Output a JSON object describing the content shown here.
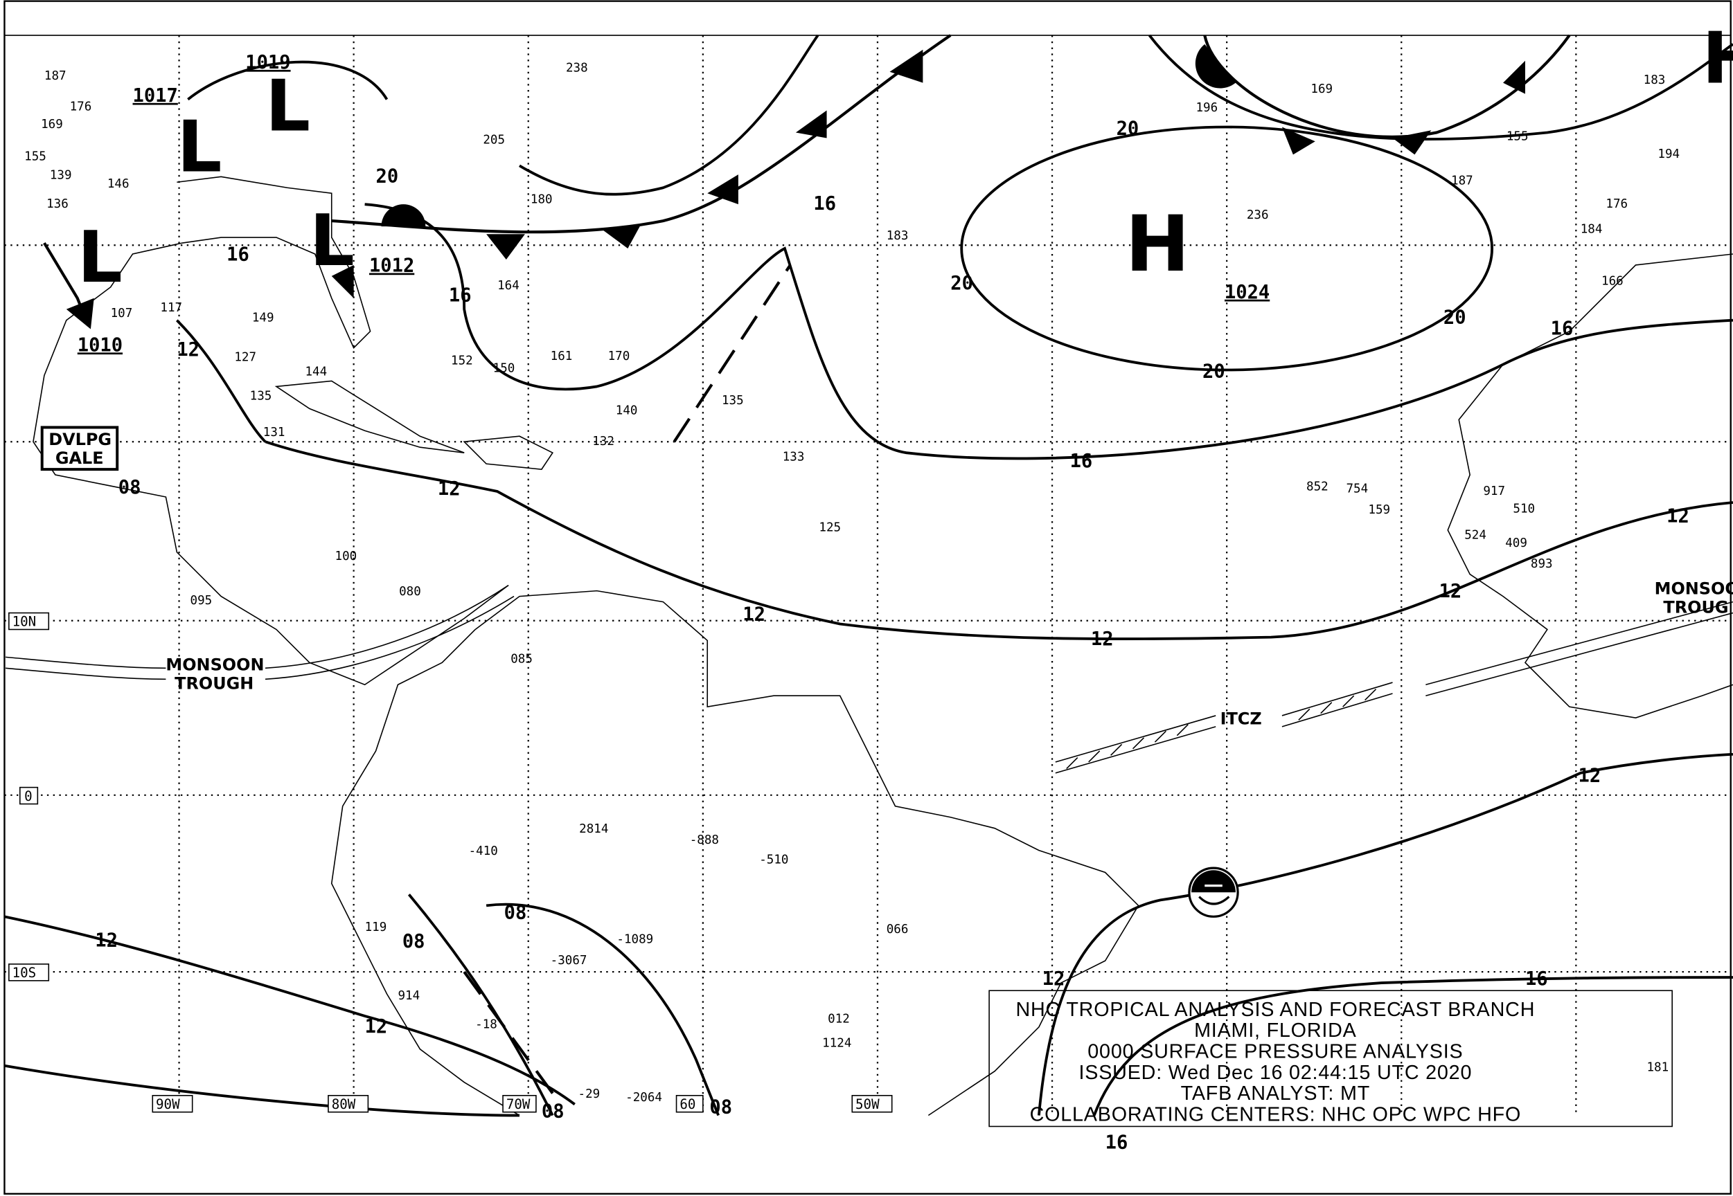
{
  "map": {
    "colors": {
      "ink": "#000000",
      "background": "#ffffff"
    },
    "pressure_centers": [
      {
        "type": "H",
        "value": "1024"
      },
      {
        "type": "L",
        "value": "1019"
      },
      {
        "type": "L",
        "value": "1017"
      },
      {
        "type": "L",
        "value": "1012"
      },
      {
        "type": "L",
        "value": "1010"
      }
    ],
    "isobar_labels": [
      "20",
      "20",
      "20",
      "20",
      "16",
      "16",
      "16",
      "16",
      "16",
      "12",
      "12",
      "12",
      "12",
      "12",
      "12",
      "12",
      "08",
      "08",
      "08",
      "08",
      "08",
      "12",
      "16",
      "12"
    ],
    "features": {
      "monsoon_1": "MONSOON",
      "monsoon_2": "TROUGH",
      "monsoon_e1": "MONSOON",
      "monsoon_e2": "TROUG",
      "itcz": "ITCZ",
      "gale_1": "DVLPG",
      "gale_2": "GALE"
    },
    "lat_labels": [
      "10N",
      "0",
      "10S"
    ],
    "lon_labels": [
      "90W",
      "80W",
      "70W",
      "60",
      "50W"
    ],
    "stations": [
      "187",
      "169",
      "176",
      "155",
      "136",
      "139",
      "146",
      "107",
      "117",
      "127",
      "135",
      "131",
      "149",
      "144",
      "152",
      "150",
      "161",
      "170",
      "180",
      "164",
      "183",
      "238",
      "205",
      "135",
      "140",
      "132",
      "133",
      "125",
      "100",
      "080",
      "095",
      "085",
      "2814",
      "-888",
      "-510",
      "066",
      "012",
      "1124",
      "181",
      "236",
      "196",
      "169",
      "155",
      "187",
      "183",
      "194",
      "176",
      "184",
      "166",
      "852",
      "754",
      "159",
      "917",
      "510",
      "524",
      "409",
      "893",
      "-3067",
      "-1089",
      "-410",
      "119",
      "914",
      "-18",
      "-29",
      "-2064"
    ],
    "info_box": {
      "line1": "NHC TROPICAL ANALYSIS AND FORECAST BRANCH",
      "line2": "MIAMI, FLORIDA",
      "line3": "0000 SURFACE PRESSURE ANALYSIS",
      "line4": "ISSUED: Wed Dec 16 02:44:15 UTC 2020",
      "line5": "TAFB ANALYST: MT",
      "line6": "COLLABORATING CENTERS: NHC OPC WPC HFO"
    },
    "logo_icon": "noaa-logo-icon"
  }
}
